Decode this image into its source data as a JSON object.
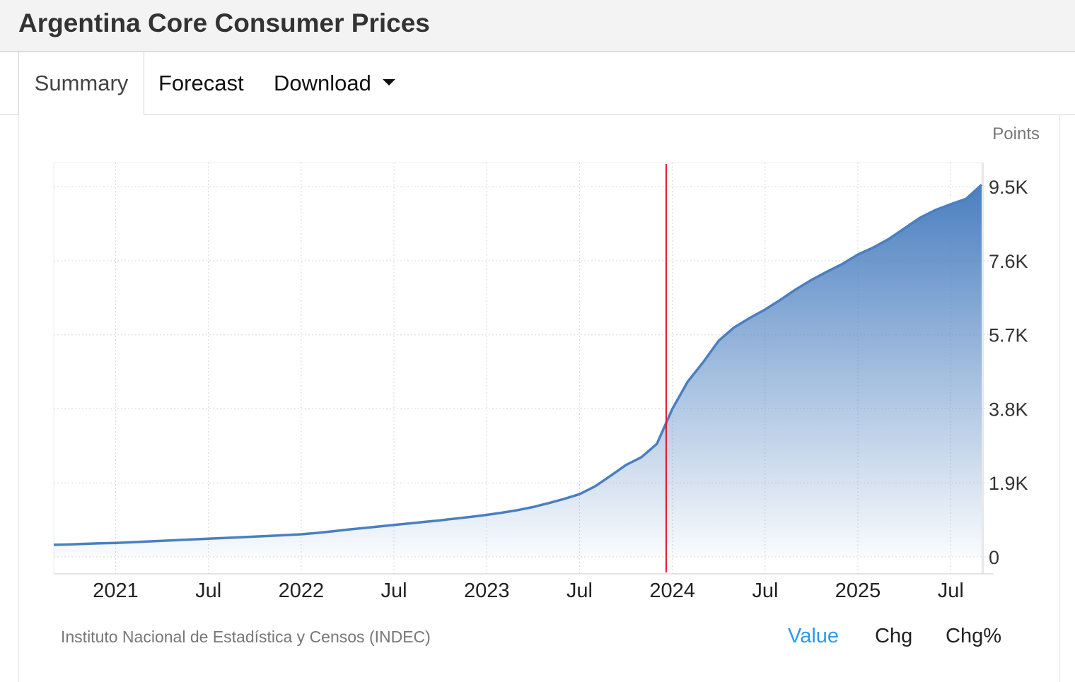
{
  "header": {
    "title": "Argentina Core Consumer Prices"
  },
  "tabs": [
    {
      "label": "Summary",
      "active": true
    },
    {
      "label": "Forecast"
    },
    {
      "label": "Download"
    }
  ],
  "chart_data": {
    "type": "area",
    "title": "Argentina Core Consumer Prices",
    "ylabel": "Points",
    "x_start": "2020-09",
    "x_end": "2025-09",
    "x": [
      "2020-09",
      "2020-10",
      "2020-11",
      "2020-12",
      "2021-01",
      "2021-02",
      "2021-03",
      "2021-04",
      "2021-05",
      "2021-06",
      "2021-07",
      "2021-08",
      "2021-09",
      "2021-10",
      "2021-11",
      "2021-12",
      "2022-01",
      "2022-02",
      "2022-03",
      "2022-04",
      "2022-05",
      "2022-06",
      "2022-07",
      "2022-08",
      "2022-09",
      "2022-10",
      "2022-11",
      "2022-12",
      "2023-01",
      "2023-02",
      "2023-03",
      "2023-04",
      "2023-05",
      "2023-06",
      "2023-07",
      "2023-08",
      "2023-09",
      "2023-10",
      "2023-11",
      "2023-12",
      "2024-01",
      "2024-02",
      "2024-03",
      "2024-04",
      "2024-05",
      "2024-06",
      "2024-07",
      "2024-08",
      "2024-09",
      "2024-10",
      "2024-11",
      "2024-12",
      "2025-01",
      "2025-02",
      "2025-03",
      "2025-04",
      "2025-05",
      "2025-06",
      "2025-07",
      "2025-08",
      "2025-09"
    ],
    "values": [
      310,
      320,
      335,
      348,
      360,
      378,
      396,
      414,
      432,
      450,
      468,
      486,
      504,
      522,
      540,
      560,
      580,
      615,
      655,
      700,
      740,
      780,
      820,
      860,
      900,
      940,
      985,
      1030,
      1080,
      1135,
      1200,
      1280,
      1380,
      1490,
      1610,
      1810,
      2080,
      2360,
      2560,
      2900,
      3800,
      4500,
      5000,
      5550,
      5890,
      6130,
      6350,
      6600,
      6870,
      7110,
      7320,
      7520,
      7760,
      7940,
      8160,
      8430,
      8700,
      8900,
      9050,
      9190,
      9550
    ],
    "y_ticks": [
      {
        "value": 0,
        "label": "0"
      },
      {
        "value": 1900,
        "label": "1.9K"
      },
      {
        "value": 3800,
        "label": "3.8K"
      },
      {
        "value": 5700,
        "label": "5.7K"
      },
      {
        "value": 7600,
        "label": "7.6K"
      },
      {
        "value": 9500,
        "label": "9.5K"
      }
    ],
    "x_ticks": [
      {
        "x": "2021-01",
        "label": "2021"
      },
      {
        "x": "2021-07",
        "label": "Jul"
      },
      {
        "x": "2022-01",
        "label": "2022"
      },
      {
        "x": "2022-07",
        "label": "Jul"
      },
      {
        "x": "2023-01",
        "label": "2023"
      },
      {
        "x": "2023-07",
        "label": "Jul"
      },
      {
        "x": "2024-01",
        "label": "2024"
      },
      {
        "x": "2024-07",
        "label": "Jul"
      },
      {
        "x": "2025-01",
        "label": "2025"
      },
      {
        "x": "2025-07",
        "label": "Jul"
      }
    ],
    "ylim": [
      -435,
      10120
    ],
    "marker_month_index": 39.6,
    "grid": true,
    "line_color": "#4a7fc0",
    "marker_color": "#e8112d"
  },
  "footer": {
    "source": "Instituto Nacional de Estadística y Censos (INDEC)",
    "modes": [
      "Value",
      "Chg",
      "Chg%"
    ]
  }
}
